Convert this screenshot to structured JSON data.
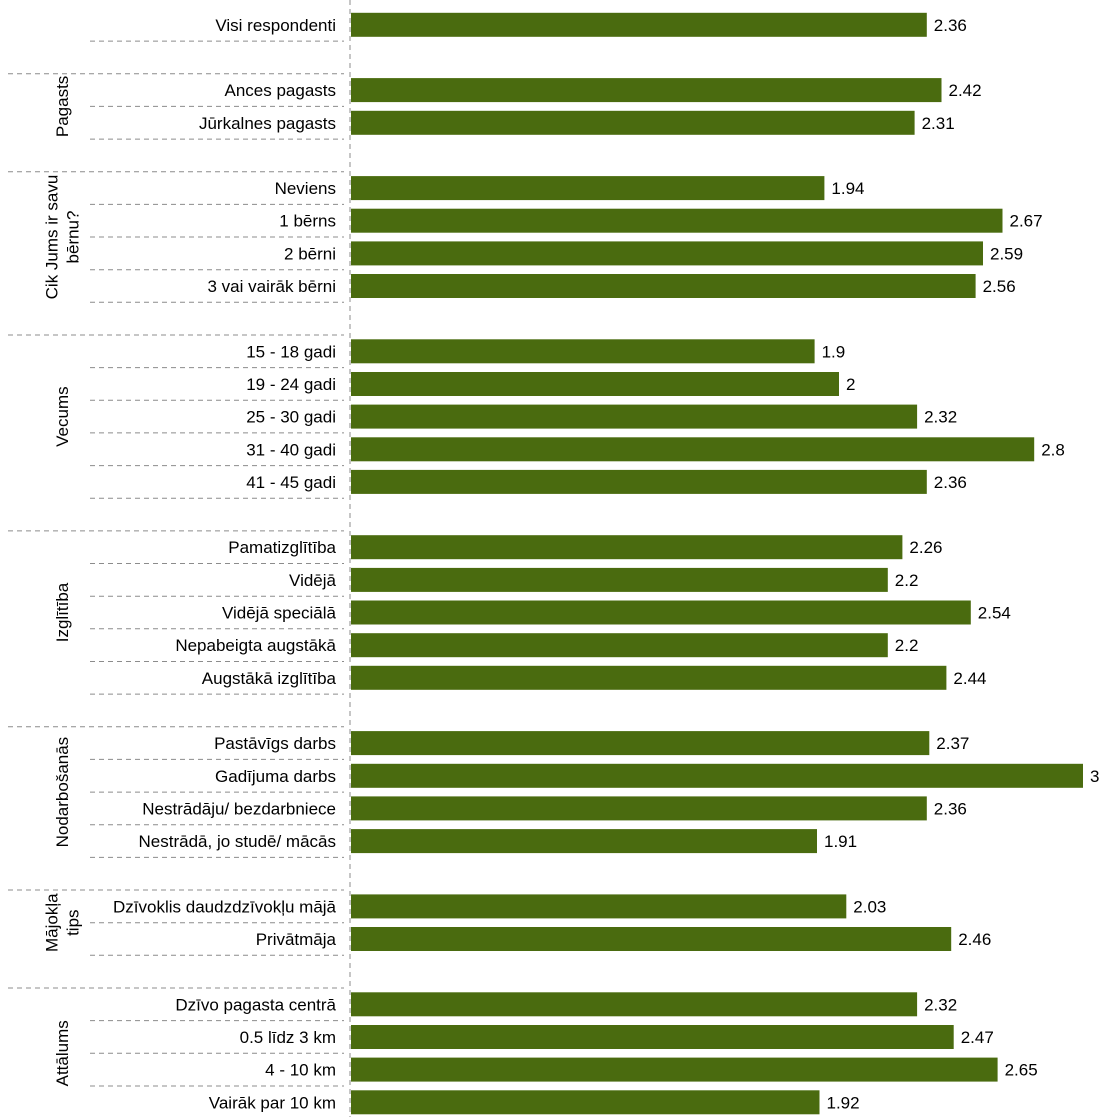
{
  "chart_data": {
    "type": "bar",
    "orientation": "horizontal",
    "bar_color": "#4a6b0f",
    "grid": false,
    "legend": "none",
    "xlim": [
      0,
      3
    ],
    "groups": [
      {
        "name": "",
        "items": [
          {
            "label": "Visi respondenti",
            "value": 2.36
          }
        ]
      },
      {
        "name": "Pagasts",
        "items": [
          {
            "label": "Ances pagasts",
            "value": 2.42
          },
          {
            "label": "Jūrkalnes pagasts",
            "value": 2.31
          }
        ]
      },
      {
        "name": "Cik Jums ir savu bērnu?",
        "name_lines": [
          "Cik Jums ir savu",
          "bērnu?"
        ],
        "items": [
          {
            "label": "Neviens",
            "value": 1.94
          },
          {
            "label": "1 bērns",
            "value": 2.67
          },
          {
            "label": "2 bērni",
            "value": 2.59
          },
          {
            "label": "3 vai vairāk bērni",
            "value": 2.56
          }
        ]
      },
      {
        "name": "Vecums",
        "items": [
          {
            "label": "15 - 18 gadi",
            "value": 1.9
          },
          {
            "label": "19 - 24 gadi",
            "value": 2
          },
          {
            "label": "25 - 30 gadi",
            "value": 2.32
          },
          {
            "label": "31 - 40 gadi",
            "value": 2.8
          },
          {
            "label": "41 - 45 gadi",
            "value": 2.36
          }
        ]
      },
      {
        "name": "Izglītība",
        "items": [
          {
            "label": "Pamatizglītība",
            "value": 2.26
          },
          {
            "label": "Vidējā",
            "value": 2.2
          },
          {
            "label": "Vidējā speciālā",
            "value": 2.54
          },
          {
            "label": "Nepabeigta augstākā",
            "value": 2.2
          },
          {
            "label": "Augstākā izglītība",
            "value": 2.44
          }
        ]
      },
      {
        "name": "Nodarbošanās",
        "items": [
          {
            "label": "Pastāvīgs darbs",
            "value": 2.37
          },
          {
            "label": "Gadījuma darbs",
            "value": 3
          },
          {
            "label": "Nestrādāju/ bezdarbniece",
            "value": 2.36
          },
          {
            "label": "Nestrādā, jo studē/ mācās",
            "value": 1.91
          }
        ]
      },
      {
        "name": "Mājokļa tips",
        "name_lines": [
          "Mājokļa",
          "tips"
        ],
        "items": [
          {
            "label": "Dzīvoklis daudzdzīvokļu mājā",
            "value": 2.03
          },
          {
            "label": "Privātmāja",
            "value": 2.46
          }
        ]
      },
      {
        "name": "Attālums",
        "items": [
          {
            "label": "Dzīvo pagasta centrā",
            "value": 2.32
          },
          {
            "label": "0.5 līdz 3 km",
            "value": 2.47
          },
          {
            "label": "4 - 10 km",
            "value": 2.65
          },
          {
            "label": "Vairāk par 10 km",
            "value": 1.92
          }
        ]
      }
    ]
  }
}
